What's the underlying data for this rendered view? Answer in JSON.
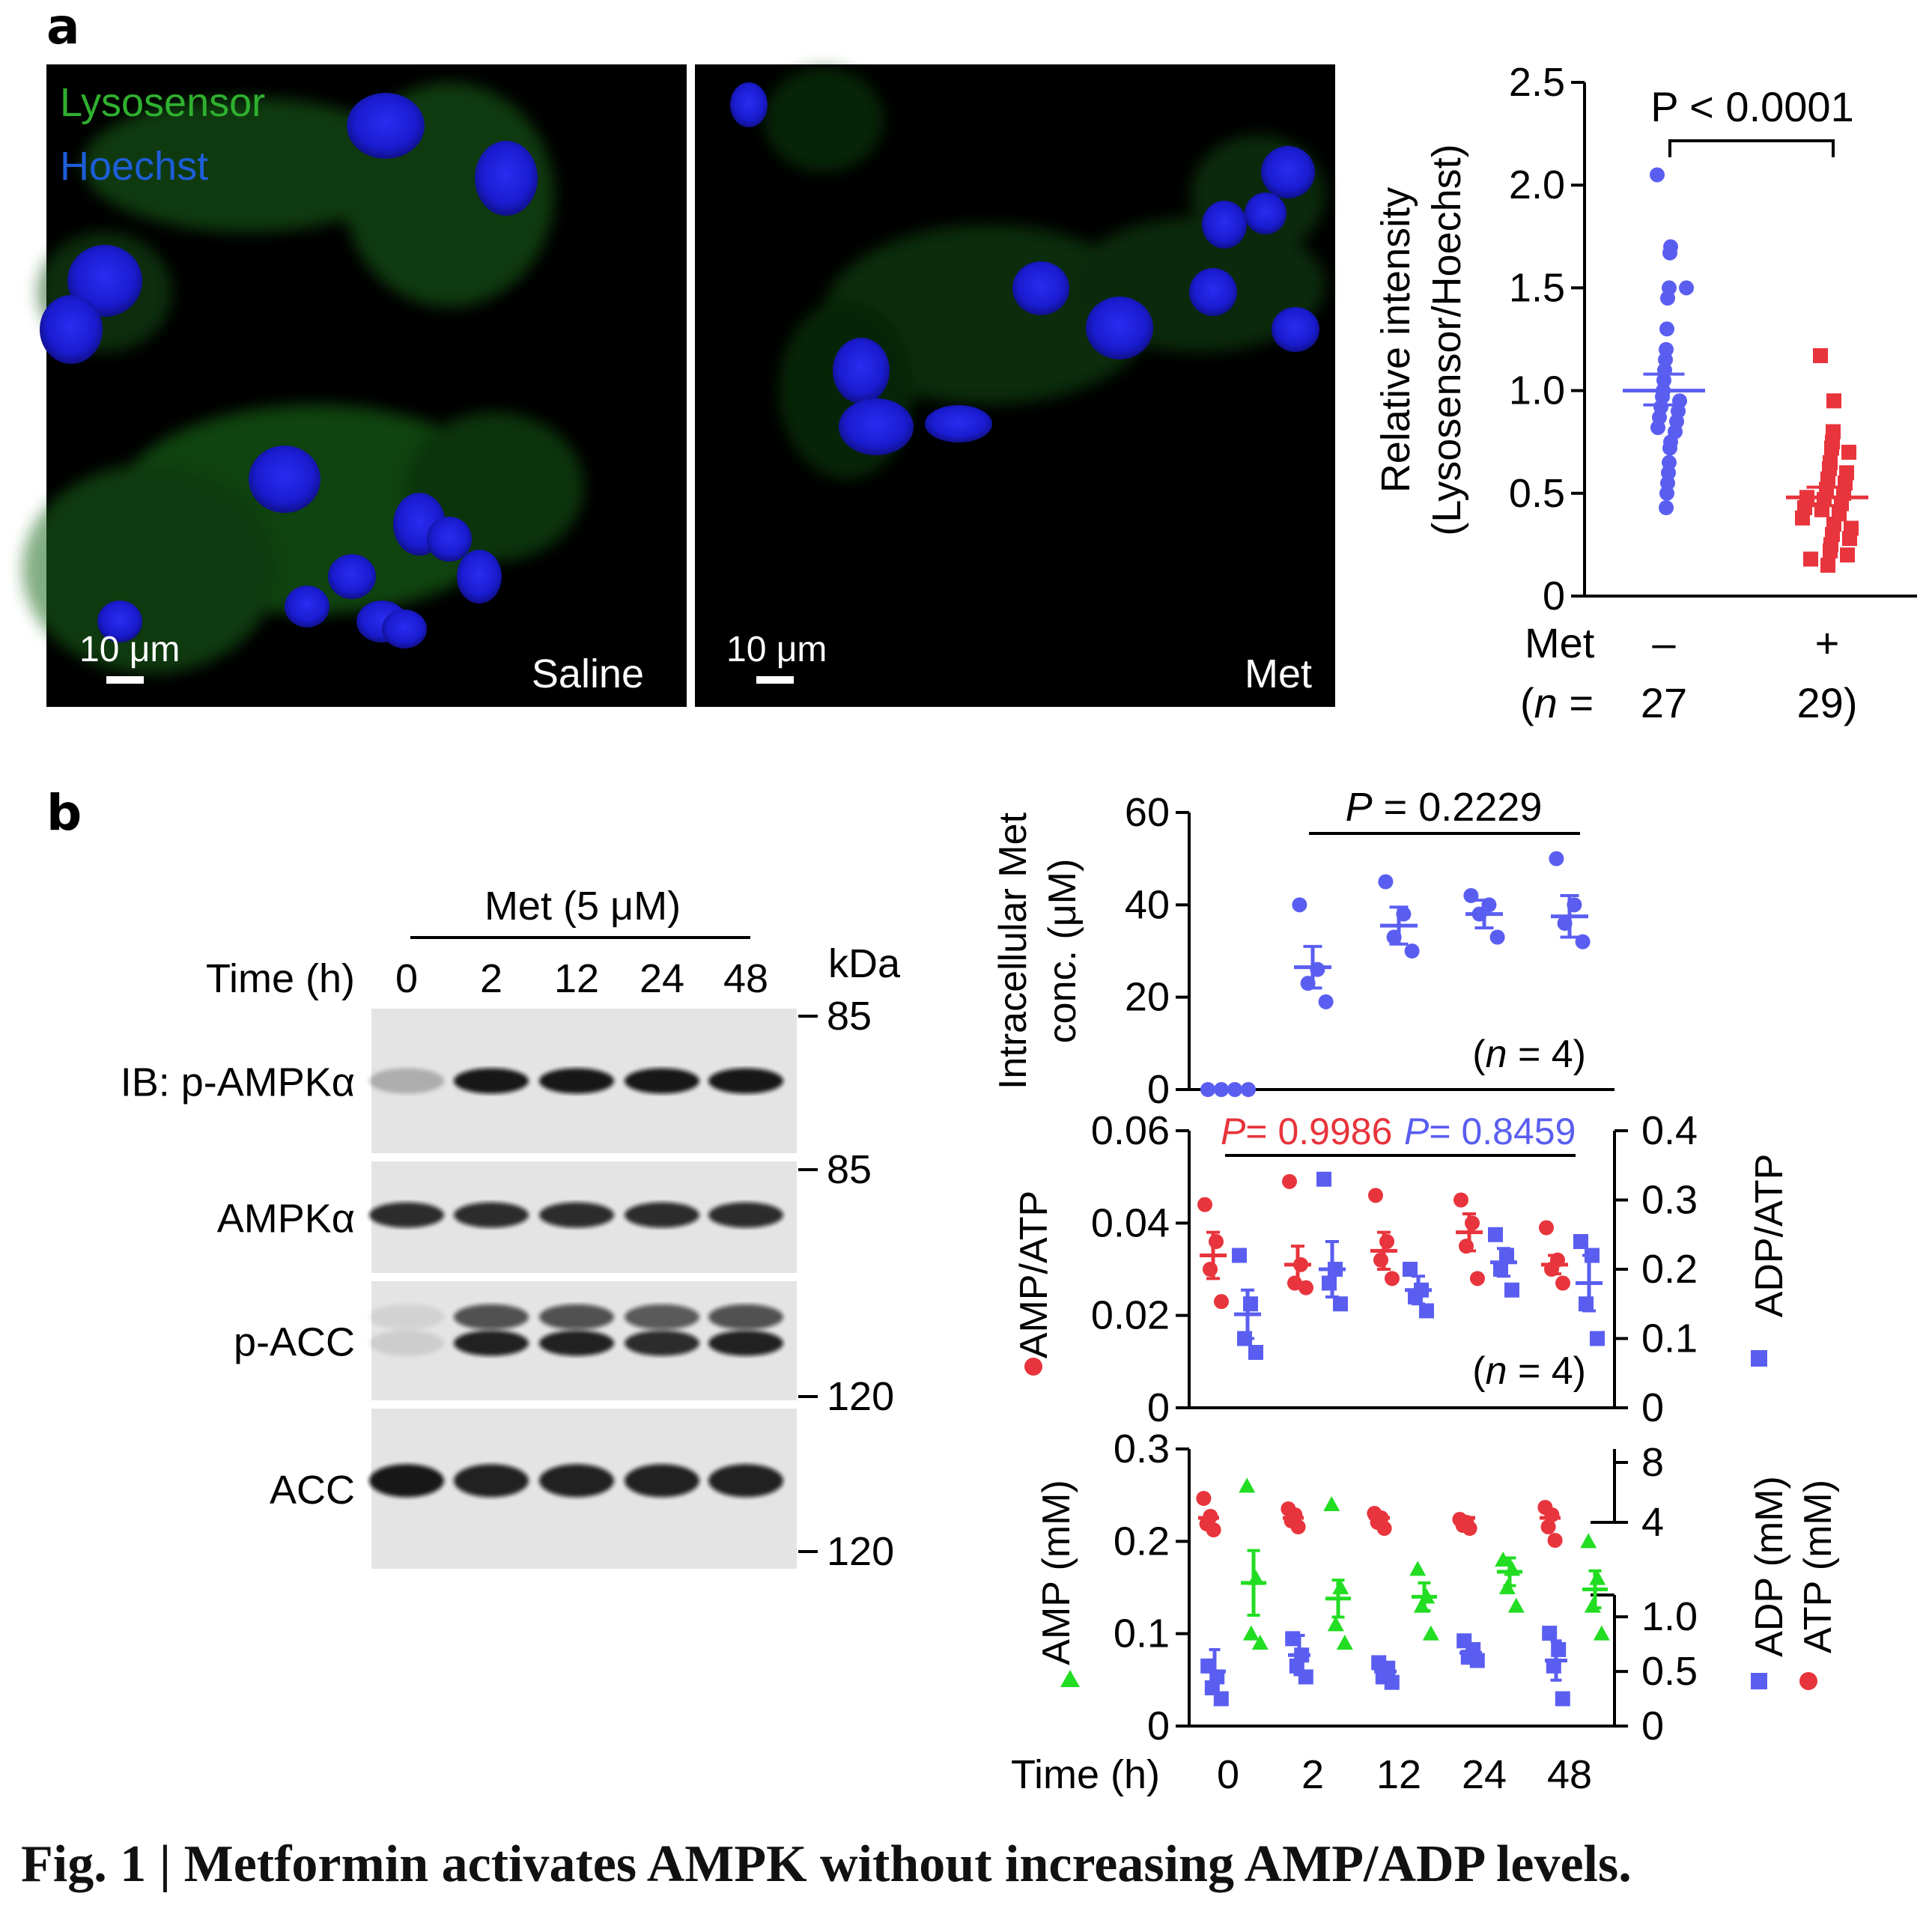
{
  "panel_a": {
    "letter": "a",
    "micrographs": {
      "legend_green": "Lysosensor",
      "legend_blue": "Hoechst",
      "left": {
        "condition": "Saline",
        "scale_bar": "10 μm"
      },
      "right": {
        "condition": "Met",
        "scale_bar": "10 μm"
      }
    }
  },
  "panel_b": {
    "letter": "b",
    "blot": {
      "treatment": "Met (5 μM)",
      "time_label": "Time (h)",
      "times": [
        "0",
        "2",
        "12",
        "24",
        "48"
      ],
      "kda_label": "kDa",
      "markers": [
        "85",
        "85",
        "120",
        "120"
      ],
      "rows": [
        "IB: p-AMPKα",
        "AMPKα",
        "p-ACC",
        "ACC"
      ],
      "band_intensity": [
        [
          0.25,
          0.95,
          0.95,
          0.95,
          0.95
        ],
        [
          0.85,
          0.85,
          0.85,
          0.85,
          0.85
        ],
        [
          0.1,
          0.9,
          0.9,
          0.85,
          0.9
        ],
        [
          0.95,
          0.9,
          0.9,
          0.9,
          0.9
        ]
      ]
    }
  },
  "chart_data": [
    {
      "type": "scatter",
      "ylabel": "Relative intensity",
      "ylabel2": "(Lysosensor/Hoechst)",
      "ylim": [
        0,
        2.5
      ],
      "yticks": [
        "0",
        "0.5",
        "1.0",
        "1.5",
        "2.0",
        "2.5"
      ],
      "row1_label": "Met",
      "row2_label": "(n =",
      "categories": [
        "–",
        "+"
      ],
      "n_values": [
        "27",
        "29)"
      ],
      "pvalue": "P < 0.0001",
      "series": [
        {
          "color": "#5a5ef0",
          "marker": "circle",
          "mean": 1.0,
          "sem_hi": 1.08,
          "sem_lo": 0.93,
          "values": [
            2.05,
            1.7,
            1.67,
            1.5,
            1.5,
            1.45,
            1.3,
            1.2,
            1.15,
            1.1,
            1.05,
            1.0,
            0.97,
            0.95,
            0.92,
            0.9,
            0.87,
            0.85,
            0.82,
            0.8,
            0.75,
            0.72,
            0.65,
            0.6,
            0.55,
            0.5,
            0.43
          ]
        },
        {
          "color": "#e8343c",
          "marker": "square",
          "mean": 0.48,
          "sem_hi": 0.53,
          "sem_lo": 0.44,
          "values": [
            1.17,
            0.95,
            0.8,
            0.75,
            0.72,
            0.7,
            0.65,
            0.62,
            0.6,
            0.57,
            0.55,
            0.52,
            0.5,
            0.48,
            0.47,
            0.45,
            0.43,
            0.42,
            0.4,
            0.38,
            0.35,
            0.33,
            0.3,
            0.28,
            0.25,
            0.22,
            0.2,
            0.18,
            0.15
          ]
        }
      ]
    },
    {
      "type": "scatter",
      "ylabel": "Intracellular Met",
      "ylabel2": "conc. (μM)",
      "ylim": [
        0,
        60
      ],
      "yticks": [
        "0",
        "20",
        "40",
        "60"
      ],
      "pvalue": "P = 0.2229",
      "n_text": "(n = 4)",
      "x": [
        "0",
        "2",
        "12",
        "24",
        "48"
      ],
      "series": [
        {
          "color": "#5a5ef0",
          "marker": "circle",
          "means": [
            0,
            26.5,
            35.5,
            38,
            37.5
          ],
          "sem": [
            0,
            4.5,
            4,
            3,
            4.5
          ],
          "points": [
            [
              0,
              0,
              0,
              0
            ],
            [
              40,
              26,
              23,
              19
            ],
            [
              45,
              38,
              33,
              30
            ],
            [
              42,
              40,
              38,
              33
            ],
            [
              50,
              40,
              36,
              32
            ]
          ]
        }
      ]
    },
    {
      "type": "scatter",
      "ylabel": "AMP/ATP",
      "ylabel_right": "ADP/ATP",
      "ylim": [
        0,
        0.06
      ],
      "yticks": [
        "0",
        "0.02",
        "0.04",
        "0.06"
      ],
      "ylim_right": [
        0,
        0.4
      ],
      "yticks_right": [
        "0",
        "0.1",
        "0.2",
        "0.3",
        "0.4"
      ],
      "pvalue_red": "P= 0.9986",
      "pvalue_blue": "P= 0.8459",
      "n_text": "(n = 4)",
      "x": [
        "0",
        "2",
        "12",
        "24",
        "48"
      ],
      "series": [
        {
          "name": "AMP/ATP",
          "color": "#e8343c",
          "marker": "circle",
          "means": [
            0.033,
            0.031,
            0.034,
            0.038,
            0.031
          ],
          "sem": [
            0.005,
            0.004,
            0.004,
            0.004,
            0.002
          ],
          "points": [
            [
              0.044,
              0.036,
              0.03,
              0.023
            ],
            [
              0.049,
              0.031,
              0.027,
              0.026
            ],
            [
              0.046,
              0.036,
              0.032,
              0.028
            ],
            [
              0.045,
              0.04,
              0.035,
              0.028
            ],
            [
              0.039,
              0.032,
              0.03,
              0.027
            ]
          ]
        },
        {
          "name": "ADP/ATP",
          "color": "#5a5ef0",
          "marker": "square",
          "means": [
            0.135,
            0.2,
            0.17,
            0.21,
            0.18
          ],
          "sem": [
            0.035,
            0.04,
            0.02,
            0.02,
            0.04
          ],
          "points": [
            [
              0.22,
              0.15,
              0.1,
              0.08
            ],
            [
              0.33,
              0.2,
              0.18,
              0.15
            ],
            [
              0.2,
              0.17,
              0.16,
              0.14
            ],
            [
              0.25,
              0.22,
              0.2,
              0.17
            ],
            [
              0.24,
              0.22,
              0.15,
              0.1
            ]
          ]
        }
      ]
    },
    {
      "type": "scatter",
      "ylabel_amp": "AMP (mM)",
      "ylabel_adp": "ADP (mM)",
      "ylabel_atp": "ATP (mM)",
      "ylim_left": [
        0,
        0.3
      ],
      "yticks_left": [
        "0",
        "0.1",
        "0.2",
        "0.3"
      ],
      "yticks_right_low": [
        "0",
        "0.5",
        "1.0"
      ],
      "yticks_right_high": [
        "4",
        "8"
      ],
      "xlabel": "Time (h)",
      "x": [
        "0",
        "2",
        "12",
        "24",
        "48"
      ],
      "series": [
        {
          "name": "ATP",
          "color": "#e8343c",
          "marker": "circle",
          "axis": "right_high",
          "points": [
            [
              5.6,
              4.4,
              3.9,
              3.5
            ],
            [
              4.9,
              4.5,
              4.1,
              3.7
            ],
            [
              4.6,
              4.3,
              4.0,
              3.6
            ],
            [
              4.2,
              4.0,
              3.8,
              3.6
            ],
            [
              5.0,
              4.5,
              3.7,
              2.8
            ]
          ]
        },
        {
          "name": "AMP",
          "color": "#22dd22",
          "marker": "triangle",
          "axis": "left",
          "means": [
            0.155,
            0.138,
            0.14,
            0.167,
            0.148
          ],
          "sem": [
            0.035,
            0.02,
            0.015,
            0.015,
            0.02
          ],
          "points": [
            [
              0.26,
              0.16,
              0.1,
              0.09
            ],
            [
              0.24,
              0.15,
              0.11,
              0.09
            ],
            [
              0.17,
              0.14,
              0.13,
              0.1
            ],
            [
              0.18,
              0.17,
              0.15,
              0.13
            ],
            [
              0.2,
              0.16,
              0.13,
              0.1
            ]
          ]
        },
        {
          "name": "ADP",
          "color": "#5a5ef0",
          "marker": "square",
          "axis": "right_low",
          "means": [
            0.5,
            0.65,
            0.5,
            0.67,
            0.6
          ],
          "sem": [
            0.2,
            0.18,
            0.08,
            0.08,
            0.18
          ],
          "points": [
            [
              0.55,
              0.45,
              0.35,
              0.25
            ],
            [
              0.8,
              0.65,
              0.55,
              0.45
            ],
            [
              0.58,
              0.53,
              0.45,
              0.4
            ],
            [
              0.78,
              0.7,
              0.63,
              0.6
            ],
            [
              0.85,
              0.7,
              0.55,
              0.25
            ]
          ]
        }
      ]
    }
  ],
  "caption": "Fig. 1 | Metformin activates AMPK without increasing AMP/ADP levels."
}
